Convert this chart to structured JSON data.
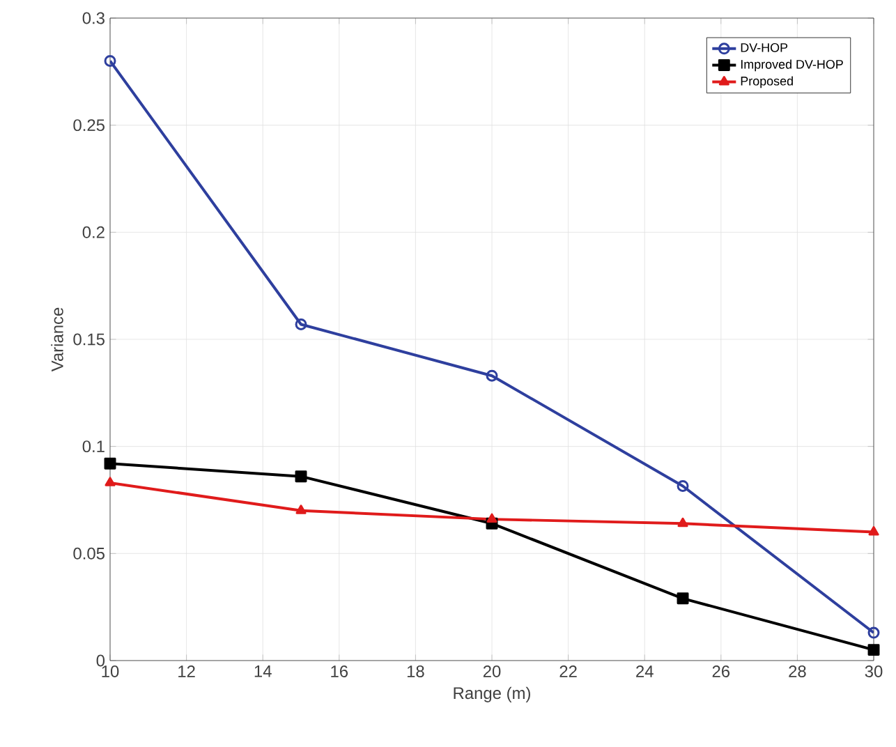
{
  "chart_data": {
    "type": "line",
    "xlabel": "Range (m)",
    "ylabel": "Variance",
    "x": [
      10,
      15,
      20,
      25,
      30
    ],
    "series": [
      {
        "name": "DV-HOP",
        "color": "#2e3f9e",
        "marker": "circle",
        "values": [
          0.28,
          0.157,
          0.133,
          0.0815,
          0.013
        ]
      },
      {
        "name": "Improved DV-HOP",
        "color": "#000000",
        "marker": "square",
        "values": [
          0.092,
          0.086,
          0.064,
          0.029,
          0.005
        ]
      },
      {
        "name": "Proposed",
        "color": "#e01b1b",
        "marker": "triangle",
        "values": [
          0.083,
          0.07,
          0.066,
          0.064,
          0.06
        ]
      }
    ],
    "xlim": [
      10,
      30
    ],
    "xticks": [
      10,
      12,
      14,
      16,
      18,
      20,
      22,
      24,
      26,
      28,
      30
    ],
    "ylim": [
      0,
      0.3
    ],
    "yticks": [
      0,
      0.05,
      0.1,
      0.15,
      0.2,
      0.25,
      0.3
    ],
    "grid": true,
    "legend": "top right",
    "line_style": "solid"
  }
}
